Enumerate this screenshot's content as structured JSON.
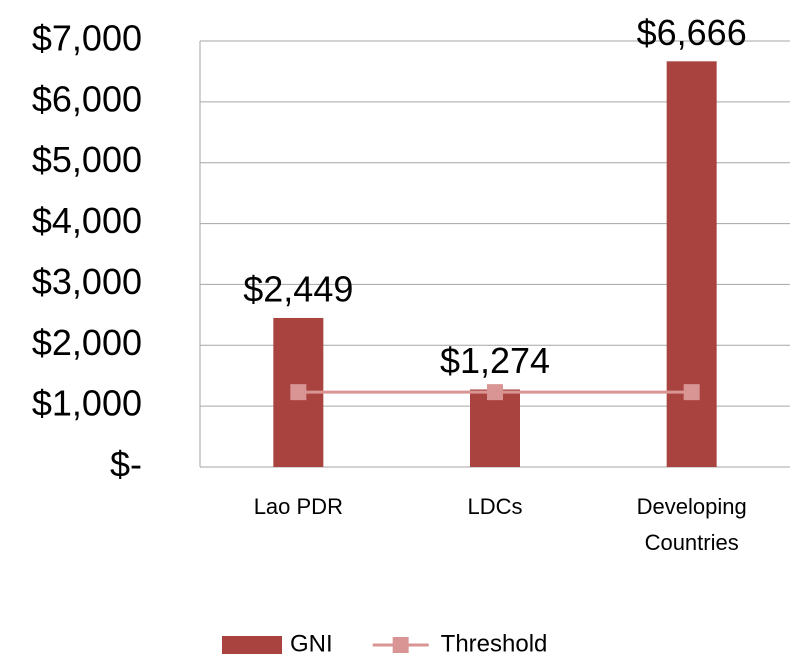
{
  "chart_data": {
    "type": "bar",
    "categories": [
      "Lao PDR",
      "LDCs",
      "Developing Countries"
    ],
    "series": [
      {
        "name": "GNI",
        "type": "bar",
        "color": "#a9433f",
        "values": [
          2449,
          1274,
          6666
        ],
        "value_labels": [
          "$2,449",
          "$1,274",
          "$6,666"
        ]
      },
      {
        "name": "Threshold",
        "type": "line",
        "color": "#d99594",
        "values": [
          1230,
          1230,
          1230
        ]
      }
    ],
    "ylim": [
      0,
      7000
    ],
    "yticks": [
      {
        "value": 0,
        "label": "$-"
      },
      {
        "value": 1000,
        "label": "$1,000"
      },
      {
        "value": 2000,
        "label": "$2,000"
      },
      {
        "value": 3000,
        "label": "$3,000"
      },
      {
        "value": 4000,
        "label": "$4,000"
      },
      {
        "value": 5000,
        "label": "$5,000"
      },
      {
        "value": 6000,
        "label": "$6,000"
      },
      {
        "value": 7000,
        "label": "$7,000"
      }
    ],
    "grid": true,
    "legend": "bottom"
  }
}
